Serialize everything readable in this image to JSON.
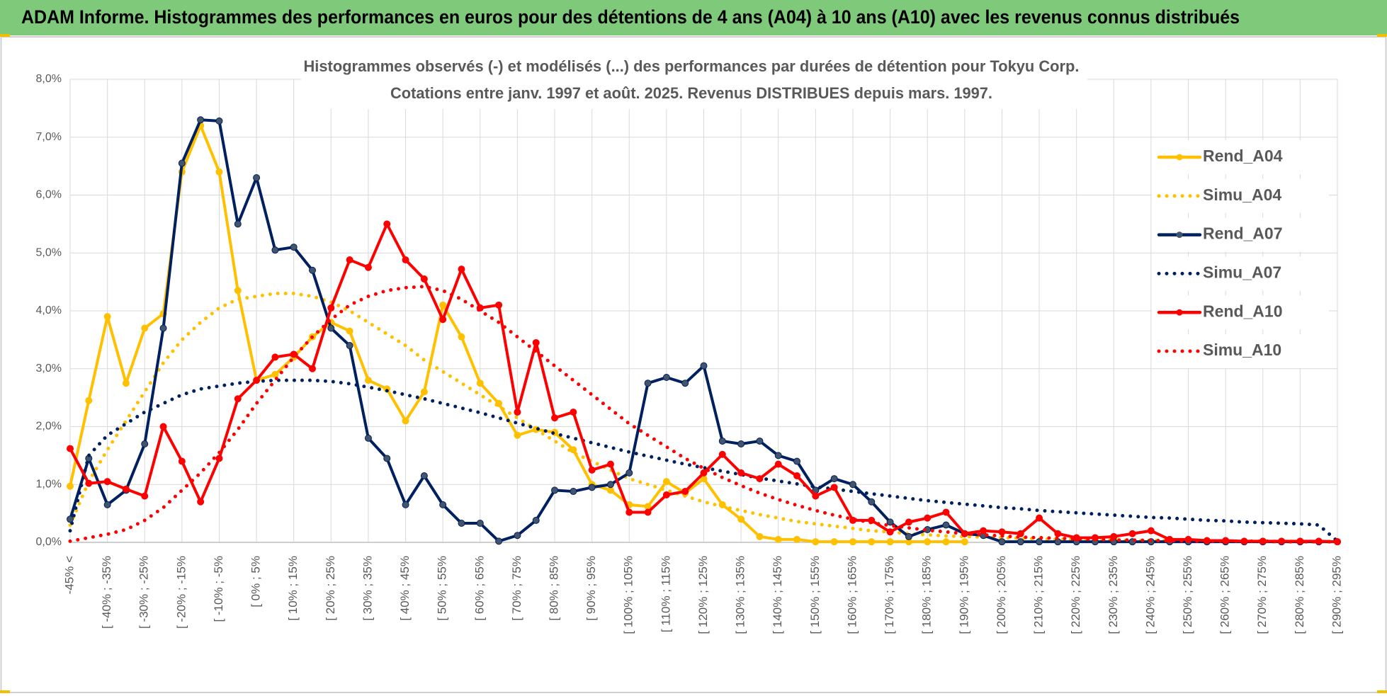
{
  "page_title": "ADAM Informe. Histogrammes des performances en euros pour des détentions de 4 ans (A04) à 10 ans (A10) avec les revenus connus distribués",
  "chart_data": {
    "type": "line",
    "title": "Histogrammes observés (-) et modélisés (...) des performances par durées de détention pour Tokyu Corp.",
    "subtitle": "Cotations entre janv. 1997 et août. 2025. Revenus DISTRIBUES depuis mars. 1997.",
    "categories": [
      "-45% <",
      null,
      "[ -40% ; -35%",
      null,
      "[ -30% ; -25%",
      null,
      "[ -20% ; -15%",
      null,
      "[ -10% ; -5%",
      null,
      "[ 0% ; 5%",
      null,
      "[ 10% ; 15%",
      null,
      "[ 20% ; 25%",
      null,
      "[ 30% ; 35%",
      null,
      "[ 40% ; 45%",
      null,
      "[ 50% ; 55%",
      null,
      "[ 60% ; 65%",
      null,
      "[ 70% ; 75%",
      null,
      "[ 80% ; 85%",
      null,
      "[ 90% ; 95%",
      null,
      "[ 100% ; 105%",
      null,
      "[ 110% ; 115%",
      null,
      "[ 120% ; 125%",
      null,
      "[ 130% ; 135%",
      null,
      "[ 140% ; 145%",
      null,
      "[ 150% ; 155%",
      null,
      "[ 160% ; 165%",
      null,
      "[ 170% ; 175%",
      null,
      "[ 180% ; 185%",
      null,
      "[ 190% ; 195%",
      null,
      "[ 200% ; 205%",
      null,
      "[ 210% ; 215%",
      null,
      "[ 220% ; 225%",
      null,
      "[ 230% ; 235%",
      null,
      "[ 240% ; 245%",
      null,
      "[ 250% ; 255%",
      null,
      "[ 260% ; 265%",
      null,
      "[ 270% ; 275%",
      null,
      "[ 280% ; 285%",
      null,
      "[ 290% ; 295%"
    ],
    "series": [
      {
        "name": "Rend_A04",
        "color": "#ffc000",
        "line_style": "solid",
        "markers": true,
        "values": [
          0.97,
          2.45,
          3.9,
          2.75,
          3.7,
          3.95,
          6.4,
          7.2,
          6.4,
          4.35,
          2.8,
          2.9,
          3.2,
          3.55,
          3.8,
          3.65,
          2.8,
          2.65,
          2.1,
          2.6,
          4.1,
          3.55,
          2.75,
          2.4,
          1.85,
          1.95,
          1.9,
          1.6,
          1.0,
          0.9,
          0.65,
          0.62,
          1.05,
          0.85,
          1.1,
          0.65,
          0.4,
          0.1,
          0.05,
          0.05,
          0.01,
          0.01,
          0.01,
          0.01,
          0.01,
          0.01,
          0.01,
          0.01,
          0.01,
          null,
          null,
          null,
          null,
          null,
          null,
          null,
          null,
          null,
          null,
          null,
          null,
          null,
          null,
          null,
          null,
          null,
          null,
          null,
          null
        ]
      },
      {
        "name": "Simu_A04",
        "color": "#ffc000",
        "line_style": "dotted",
        "markers": false,
        "values": [
          0.3,
          1.05,
          1.6,
          2.1,
          2.6,
          3.1,
          3.5,
          3.8,
          4.05,
          4.2,
          4.25,
          4.3,
          4.3,
          4.25,
          4.15,
          4.0,
          3.8,
          3.6,
          3.4,
          3.15,
          2.95,
          2.75,
          2.55,
          2.35,
          2.15,
          1.95,
          1.75,
          1.55,
          1.4,
          1.25,
          1.1,
          1.0,
          0.9,
          0.8,
          0.7,
          0.62,
          0.55,
          0.48,
          0.42,
          0.36,
          0.32,
          0.28,
          0.24,
          0.2,
          0.18,
          0.15,
          0.13,
          0.11,
          0.1,
          0.09,
          0.08,
          0.07,
          0.06,
          0.05,
          0.05,
          0.04,
          0.04,
          0.03,
          0.03,
          0.03,
          0.02,
          0.02,
          0.02,
          0.02,
          0.01,
          0.01,
          0.01,
          0.01,
          0.01
        ]
      },
      {
        "name": "Rend_A07",
        "color": "#002060",
        "line_style": "solid",
        "markers": true,
        "values": [
          0.4,
          1.45,
          0.65,
          0.9,
          1.7,
          3.7,
          6.55,
          7.3,
          7.28,
          5.5,
          6.3,
          5.05,
          5.1,
          4.7,
          3.7,
          3.4,
          1.8,
          1.45,
          0.65,
          1.15,
          0.65,
          0.33,
          0.33,
          0.02,
          0.12,
          0.38,
          0.9,
          0.88,
          0.95,
          1.0,
          1.2,
          2.75,
          2.85,
          2.75,
          3.05,
          1.75,
          1.7,
          1.75,
          1.5,
          1.4,
          0.9,
          1.1,
          1.0,
          0.7,
          0.35,
          0.1,
          0.22,
          0.3,
          0.15,
          0.12,
          0.01,
          0.01,
          0.01,
          0.01,
          0.01,
          0.01,
          0.01,
          0.01,
          0.01,
          0.01,
          0.01,
          0.01,
          0.01,
          0.01,
          0.01,
          0.01,
          0.01,
          0.01,
          0.01
        ]
      },
      {
        "name": "Simu_A07",
        "color": "#002060",
        "line_style": "dotted",
        "markers": false,
        "values": [
          0.2,
          1.5,
          1.85,
          2.05,
          2.25,
          2.4,
          2.55,
          2.65,
          2.7,
          2.75,
          2.78,
          2.8,
          2.8,
          2.8,
          2.78,
          2.74,
          2.68,
          2.62,
          2.55,
          2.48,
          2.4,
          2.32,
          2.24,
          2.15,
          2.06,
          1.97,
          1.88,
          1.8,
          1.72,
          1.64,
          1.56,
          1.49,
          1.42,
          1.35,
          1.29,
          1.23,
          1.17,
          1.11,
          1.06,
          1.01,
          0.96,
          0.92,
          0.88,
          0.84,
          0.8,
          0.76,
          0.72,
          0.69,
          0.66,
          0.63,
          0.6,
          0.58,
          0.55,
          0.53,
          0.51,
          0.49,
          0.47,
          0.45,
          0.43,
          0.42,
          0.4,
          0.38,
          0.37,
          0.35,
          0.34,
          0.33,
          0.32,
          0.3,
          0.02
        ]
      },
      {
        "name": "Rend_A10",
        "color": "#ff0000",
        "line_style": "solid",
        "markers": true,
        "values": [
          1.62,
          1.02,
          1.05,
          0.92,
          0.8,
          2.0,
          1.4,
          0.7,
          1.45,
          2.48,
          2.8,
          3.2,
          3.25,
          3.0,
          4.05,
          4.88,
          4.75,
          5.5,
          4.88,
          4.55,
          3.85,
          4.72,
          4.05,
          4.1,
          2.25,
          3.45,
          2.15,
          2.25,
          1.25,
          1.35,
          0.52,
          0.52,
          0.82,
          0.88,
          1.2,
          1.52,
          1.2,
          1.1,
          1.35,
          1.15,
          0.8,
          0.95,
          0.38,
          0.38,
          0.18,
          0.35,
          0.42,
          0.52,
          0.15,
          0.2,
          0.18,
          0.15,
          0.42,
          0.15,
          0.08,
          0.08,
          0.1,
          0.15,
          0.2,
          0.05,
          0.05,
          0.03,
          0.03,
          0.02,
          0.02,
          0.02,
          0.02,
          0.02,
          0.01
        ]
      },
      {
        "name": "Simu_A10",
        "color": "#ff0000",
        "line_style": "dotted",
        "markers": false,
        "values": [
          0.02,
          0.08,
          0.14,
          0.22,
          0.38,
          0.6,
          0.9,
          1.2,
          1.55,
          1.95,
          2.4,
          2.8,
          3.2,
          3.55,
          3.85,
          4.1,
          4.25,
          4.35,
          4.4,
          4.42,
          4.35,
          4.2,
          4.0,
          3.8,
          3.55,
          3.3,
          3.05,
          2.8,
          2.55,
          2.3,
          2.05,
          1.85,
          1.65,
          1.45,
          1.28,
          1.12,
          0.98,
          0.85,
          0.74,
          0.64,
          0.55,
          0.47,
          0.4,
          0.34,
          0.29,
          0.25,
          0.21,
          0.18,
          0.15,
          0.13,
          0.11,
          0.09,
          0.08,
          0.07,
          0.06,
          0.05,
          0.04,
          0.04,
          0.03,
          0.03,
          0.02,
          0.02,
          0.02,
          0.02,
          0.02,
          0.01,
          0.01,
          0.01,
          0.01
        ]
      }
    ],
    "ylim": [
      0,
      8
    ],
    "yticks": [
      {
        "value": 0,
        "label": "0,0%"
      },
      {
        "value": 1,
        "label": "1,0%"
      },
      {
        "value": 2,
        "label": "2,0%"
      },
      {
        "value": 3,
        "label": "3,0%"
      },
      {
        "value": 4,
        "label": "4,0%"
      },
      {
        "value": 5,
        "label": "5,0%"
      },
      {
        "value": 6,
        "label": "6,0%"
      },
      {
        "value": 7,
        "label": "7,0%"
      },
      {
        "value": 8,
        "label": "8,0%"
      }
    ],
    "grid": true,
    "legend": "right"
  }
}
